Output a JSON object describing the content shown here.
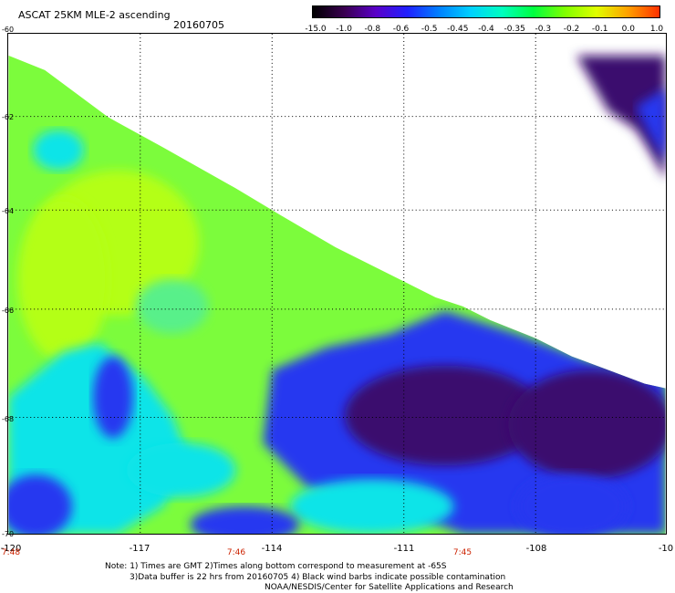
{
  "header": {
    "title": "ASCAT 25KM MLE-2 ascending",
    "date": "20160705"
  },
  "colorbar": {
    "labels": [
      "-15.0",
      "-1.0",
      "-0.8",
      "-0.6",
      "-0.5",
      "-0.45",
      "-0.4",
      "-0.35",
      "-0.3",
      "-0.2",
      "-0.1",
      "0.0",
      "1.0"
    ],
    "colors": [
      "#000000",
      "#3a0050",
      "#5a00c8",
      "#2020ff",
      "#0080ff",
      "#00d0ff",
      "#00ffc0",
      "#00ff40",
      "#80ff00",
      "#e0ff00",
      "#ffa000",
      "#ff3000"
    ]
  },
  "map": {
    "lat_labels": [
      "-60",
      "-62",
      "-64",
      "-66",
      "-68",
      "-70"
    ],
    "lon_labels": [
      "-120",
      "-117",
      "-114",
      "-111",
      "-108",
      "-10"
    ],
    "time_labels": [
      "7:48",
      "7:46",
      "7:45"
    ],
    "regions": {
      "green_swath": "#7cfc3c",
      "lime": "#b4ff14",
      "cyan": "#10e4e8",
      "blue": "#2838f0",
      "purple": "#3a0b6e"
    }
  },
  "notes": {
    "line1": "Note: 1) Times are GMT 2)Times along bottom correspond to measurement at -65S",
    "line2": "3)Data buffer is 22 hrs from 20160705 4) Black wind barbs indicate possible contamination",
    "line3": "NOAA/NESDIS/Center for Satellite Applications and Research"
  }
}
